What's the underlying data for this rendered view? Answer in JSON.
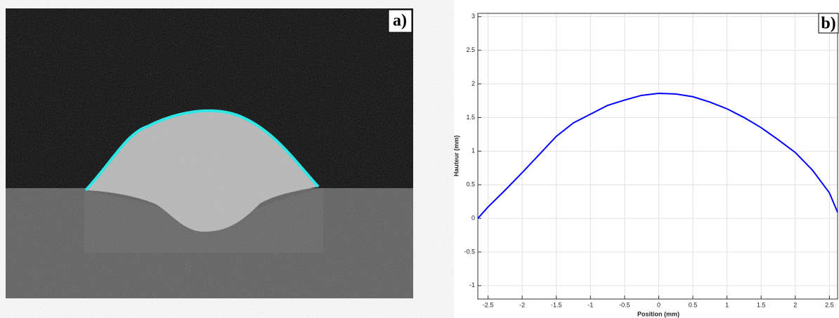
{
  "image_panel": {
    "label": "a)"
  },
  "chart_data": {
    "type": "line",
    "label": "b)",
    "x_label": "Position (mm)",
    "y_label": "Hauteur (mm)",
    "x": [
      -2.65,
      -2.5,
      -2.25,
      -2,
      -1.75,
      -1.5,
      -1.25,
      -1,
      -0.75,
      -0.5,
      -0.25,
      0,
      0.25,
      0.5,
      0.75,
      1,
      1.25,
      1.5,
      1.75,
      2,
      2.25,
      2.5,
      2.62
    ],
    "series": [
      {
        "color": "#0000ff",
        "values": [
          0,
          0.17,
          0.42,
          0.68,
          0.95,
          1.22,
          1.42,
          1.55,
          1.68,
          1.76,
          1.83,
          1.86,
          1.85,
          1.81,
          1.73,
          1.63,
          1.5,
          1.35,
          1.17,
          0.98,
          0.72,
          0.38,
          0.09
        ]
      }
    ],
    "xlim": [
      -2.65,
      2.62
    ],
    "ylim": [
      -1.2,
      3.05
    ],
    "xticks": [
      -2.5,
      -2,
      -1.5,
      -1,
      -0.5,
      0,
      0.5,
      1,
      1.5,
      2,
      2.5
    ],
    "yticks": [
      -1,
      -0.5,
      0,
      0.5,
      1,
      1.5,
      2,
      2.5,
      3
    ],
    "grid": true
  }
}
